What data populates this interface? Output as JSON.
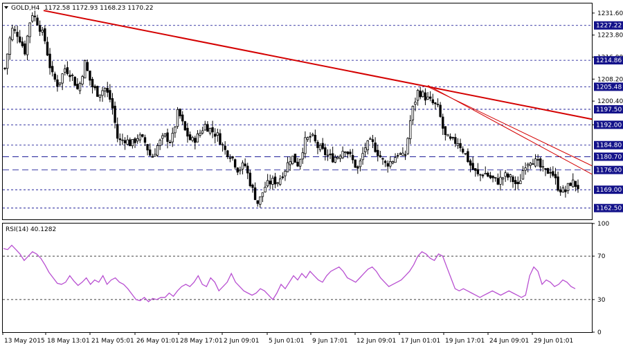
{
  "header": {
    "symbol_label": "GOLD,H4",
    "ohlc_label": "1172.58 1172.93 1168.23 1170.22",
    "rsi_label": "RSI(14) 40.1282"
  },
  "colors": {
    "trendline": "#d40000",
    "rsi": "#b84fd1",
    "candle": "#000000",
    "grid": "#00008b",
    "label_box": "#13128a"
  },
  "chart_data": [
    {
      "type": "candlestick",
      "symbol": "GOLD",
      "timeframe": "H4",
      "ylim": [
        1158.5,
        1235.0
      ],
      "y_ticks": [
        "1231.60",
        "1223.80",
        "1216.00",
        "1208.20",
        "1200.40",
        "1192.00"
      ],
      "marked_levels": [
        "1227.22",
        "1214.86",
        "1205.48",
        "1197.50",
        "1192.00",
        "1184.80",
        "1180.70",
        "1176.00",
        "1169.00",
        "1162.50"
      ],
      "dashed_levels": [
        1227.22,
        1214.86,
        1205.48,
        1197.5,
        1192.0,
        1184.8,
        1180.7,
        1176.0,
        1169.0,
        1162.5
      ],
      "long_dash_levels": [
        1180.7,
        1176.0
      ],
      "x_labels": [
        "13 May 2015",
        "18 May 13:01",
        "21 May 05:01",
        "26 May 01:01",
        "28 May 17:01",
        "2 Jun 09:01",
        "5 Jun 01:01",
        "9 Jun 17:01",
        "12 Jun 09:01",
        "17 Jun 01:01",
        "19 Jun 17:01",
        "24 Jun 09:01",
        "29 Jun 01:01"
      ],
      "close_trend": [
        1212,
        1226,
        1224,
        1218,
        1232,
        1228,
        1222,
        1210,
        1206,
        1212,
        1210,
        1204,
        1214,
        1206,
        1203,
        1205,
        1200,
        1186,
        1187,
        1185,
        1188,
        1186,
        1180,
        1185,
        1188,
        1186,
        1197,
        1190,
        1186,
        1188,
        1192,
        1190,
        1188,
        1183,
        1181,
        1176,
        1178,
        1170,
        1164,
        1170,
        1172,
        1172,
        1176,
        1181,
        1178,
        1186,
        1188,
        1184,
        1182,
        1180,
        1181,
        1184,
        1180,
        1176,
        1184,
        1186,
        1182,
        1178,
        1179,
        1182,
        1180,
        1196,
        1204,
        1202,
        1200,
        1198,
        1188,
        1186,
        1186,
        1182,
        1177,
        1174,
        1175,
        1173,
        1172,
        1174,
        1173,
        1170,
        1178,
        1180,
        1178,
        1175,
        1176,
        1170,
        1168,
        1172,
        1170
      ],
      "last_close": 1170.22,
      "trendlines": [
        {
          "from": [
            "13 May 2015",
            1232.5
          ],
          "to": [
            "right edge",
            1194.0
          ]
        },
        {
          "from": [
            "17 Jun 01:01",
            1206.0
          ],
          "to": [
            "right edge",
            1174.5
          ]
        },
        {
          "from": [
            "17 Jun 01:01",
            1205.5
          ],
          "to": [
            "right edge",
            1177.5
          ]
        }
      ]
    },
    {
      "type": "line",
      "name": "RSI(14)",
      "last_value": 40.1282,
      "ylim": [
        0,
        100
      ],
      "levels": [
        70,
        30
      ],
      "y_ticks": [
        "100",
        "70",
        "30",
        "0"
      ],
      "values": [
        77,
        76,
        80,
        76,
        72,
        66,
        70,
        74,
        72,
        68,
        62,
        55,
        50,
        45,
        44,
        46,
        52,
        47,
        43,
        46,
        50,
        44,
        48,
        46,
        52,
        44,
        48,
        50,
        46,
        44,
        40,
        35,
        30,
        29,
        32,
        28,
        31,
        30,
        32,
        32,
        36,
        33,
        38,
        42,
        44,
        42,
        46,
        52,
        44,
        42,
        50,
        46,
        38,
        42,
        46,
        54,
        46,
        42,
        38,
        36,
        34,
        36,
        40,
        38,
        34,
        30,
        36,
        44,
        40,
        46,
        52,
        48,
        54,
        50,
        56,
        52,
        48,
        46,
        52,
        56,
        58,
        60,
        56,
        50,
        48,
        46,
        50,
        54,
        58,
        60,
        56,
        50,
        46,
        42,
        44,
        46,
        48,
        52,
        56,
        62,
        70,
        74,
        72,
        68,
        66,
        72,
        70,
        60,
        50,
        40,
        38,
        40,
        38,
        36,
        34,
        32,
        34,
        36,
        38,
        36,
        34,
        36,
        38,
        36,
        34,
        32,
        34,
        52,
        60,
        56,
        44,
        48,
        46,
        42,
        44,
        48,
        46,
        42,
        40
      ]
    }
  ]
}
